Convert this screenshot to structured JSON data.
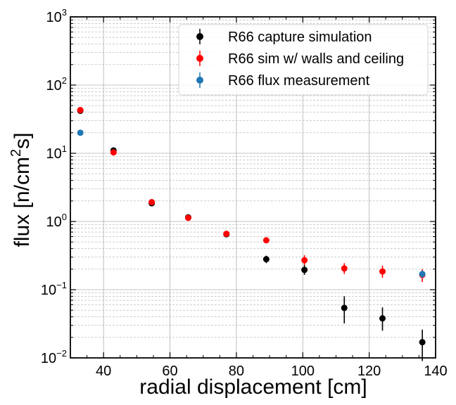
{
  "chart_data": {
    "type": "scatter",
    "xlabel": "radial displacement [cm]",
    "ylabel_main": "flux [n/cm",
    "ylabel_sup": "2",
    "ylabel_tail": "s]",
    "xlim": [
      30,
      140
    ],
    "ylim": [
      0.01,
      1000
    ],
    "yscale": "log",
    "grid": true,
    "legend_position": "top-right",
    "x_ticks": [
      {
        "value": 40,
        "label": "40"
      },
      {
        "value": 60,
        "label": "60"
      },
      {
        "value": 80,
        "label": "80"
      },
      {
        "value": 100,
        "label": "100"
      },
      {
        "value": 120,
        "label": "120"
      },
      {
        "value": 140,
        "label": "140"
      }
    ],
    "y_ticks": [
      {
        "value": 0.01,
        "base": "10",
        "exp": "−2"
      },
      {
        "value": 0.1,
        "base": "10",
        "exp": "−1"
      },
      {
        "value": 1,
        "base": "10",
        "exp": "0"
      },
      {
        "value": 10,
        "base": "10",
        "exp": "1"
      },
      {
        "value": 100,
        "base": "10",
        "exp": "2"
      },
      {
        "value": 1000,
        "base": "10",
        "exp": "3"
      }
    ],
    "series": [
      {
        "name": "R66 capture simulation",
        "color": "#000000",
        "points": [
          {
            "x": 33,
            "y": 42,
            "lo": 39,
            "hi": 45
          },
          {
            "x": 43,
            "y": 11,
            "lo": 10.3,
            "hi": 11.7
          },
          {
            "x": 54.5,
            "y": 1.85,
            "lo": 1.72,
            "hi": 1.98
          },
          {
            "x": 65.5,
            "y": 1.15,
            "lo": 1.07,
            "hi": 1.23
          },
          {
            "x": 77,
            "y": 0.65,
            "lo": 0.6,
            "hi": 0.7
          },
          {
            "x": 89,
            "y": 0.28,
            "lo": 0.245,
            "hi": 0.315
          },
          {
            "x": 100.5,
            "y": 0.195,
            "lo": 0.165,
            "hi": 0.23
          },
          {
            "x": 112.5,
            "y": 0.054,
            "lo": 0.032,
            "hi": 0.08
          },
          {
            "x": 124,
            "y": 0.038,
            "lo": 0.025,
            "hi": 0.055
          },
          {
            "x": 136,
            "y": 0.017,
            "lo": 0.009,
            "hi": 0.026
          }
        ]
      },
      {
        "name": "R66 sim w/ walls and ceiling",
        "color": "#ff0000",
        "points": [
          {
            "x": 33,
            "y": 43,
            "lo": 40,
            "hi": 46
          },
          {
            "x": 43,
            "y": 10.3,
            "lo": 9.6,
            "hi": 11
          },
          {
            "x": 54.5,
            "y": 1.92,
            "lo": 1.8,
            "hi": 2.05
          },
          {
            "x": 65.5,
            "y": 1.13,
            "lo": 1.06,
            "hi": 1.2
          },
          {
            "x": 77,
            "y": 0.66,
            "lo": 0.6,
            "hi": 0.72
          },
          {
            "x": 89,
            "y": 0.53,
            "lo": 0.48,
            "hi": 0.58
          },
          {
            "x": 100.5,
            "y": 0.27,
            "lo": 0.23,
            "hi": 0.32
          },
          {
            "x": 112.5,
            "y": 0.205,
            "lo": 0.17,
            "hi": 0.245
          },
          {
            "x": 124,
            "y": 0.185,
            "lo": 0.15,
            "hi": 0.225
          },
          {
            "x": 136,
            "y": 0.165,
            "lo": 0.13,
            "hi": 0.2
          }
        ]
      },
      {
        "name": "R66 flux measurement",
        "color": "#1f77b4",
        "points": [
          {
            "x": 33,
            "y": 20,
            "lo": 19,
            "hi": 21
          },
          {
            "x": 136,
            "y": 0.17,
            "lo": 0.15,
            "hi": 0.19
          }
        ]
      }
    ]
  }
}
